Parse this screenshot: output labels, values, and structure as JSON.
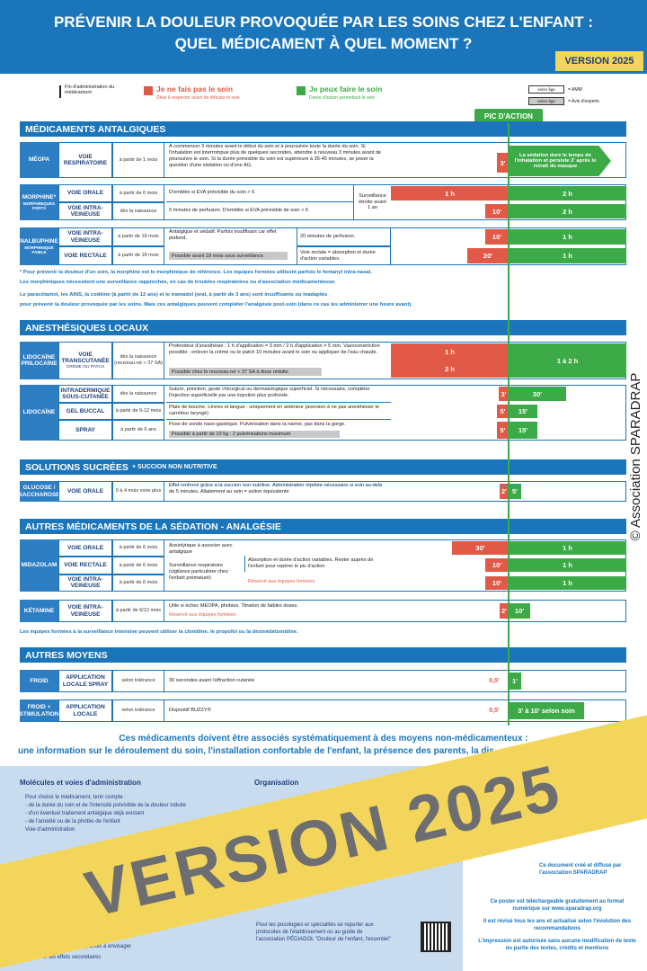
{
  "header": {
    "line1": "PRÉVENIR LA DOULEUR PROVOQUÉE PAR LES SOINS CHEZ L'ENFANT :",
    "line2": "QUEL MÉDICAMENT À QUEL MOMENT ?",
    "version": "VERSION 2025"
  },
  "legend": {
    "end": "Fin d'administration du médicament",
    "no": "Je ne fais pas le soin",
    "no_sub": "Délai à respecter avant de débuter le soin",
    "yes": "Je peux faire le soin",
    "yes_sub": "Durée d'action permettant le soin",
    "tag": "selon âge",
    "amm": "= AMM",
    "experts": "= Avis d'experts"
  },
  "peak": "PIC D'ACTION",
  "analgesics": {
    "title": "MÉDICAMENTS ANTALGIQUES",
    "meopa": {
      "name": "MÉOPA",
      "route": "VOIE RESPIRATOIRE",
      "age": "à partir de 1 mois",
      "desc": "À commencer 3 minutes avant le début du soin et à poursuivre toute la durée du soin. Si l'inhalation est interrompue plus de quelques secondes, attendre à nouveau 3 minutes avant de poursuivre le soin. Si la durée prévisible du soin est supérieure à 35-45 minutes, se poser la question d'une sédation ou d'une AG.",
      "delay": "3'",
      "duration": "La sédation dure le temps de l'inhalation et persiste 2' après le retrait du masque"
    },
    "morphine": {
      "name": "MORPHINE*",
      "sub": "MORPHINIQUES FORTS",
      "watch": "Surveillance étroite avant 1 an",
      "rows": [
        {
          "route": "VOIE ORALE",
          "age": "à partir de 6 mois",
          "desc": "D'emblée si EVA prévisible du soin > 6",
          "delay": "1 h",
          "duration": "2 h"
        },
        {
          "route": "VOIE INTRA-VEINEUSE",
          "age": "dès la naissance",
          "desc": "5 minutes de perfusion. D'emblée si EVA prévisible de soin > 6",
          "delay": "10'",
          "duration": "2 h"
        }
      ]
    },
    "nalbuphine": {
      "name": "NALBUPHINE",
      "sub": "MORPHINIQUE FAIBLE",
      "desc": "Antalgique et sédatif. Parfois insuffisant car effet plafond.",
      "restriction": "Possible avant 18 mois sous surveillance.",
      "rows": [
        {
          "route": "VOIE INTRA-VEINEUSE",
          "age": "à partir de 18 mois",
          "note": "20 minutes de perfusion.",
          "delay": "10'",
          "duration": "1 h"
        },
        {
          "route": "VOIE RECTALE",
          "age": "à partir de 18 mois",
          "note": "Voie rectale = absorption et durée d'action variables.",
          "delay": "20'",
          "duration": "1 h"
        }
      ]
    },
    "notes": [
      "* Pour prévenir la douleur d'un soin, la morphine est le morphinique de référence. Les équipes formées utilisent parfois le fentanyl intra-nasal.",
      "Les morphiniques nécessitent une surveillance rapprochée, en cas de troubles respiratoires ou d'association médicamenteuse.",
      "Le paracétamol, les AINS, la codéine (à partir de 12 ans) et le tramadol (oral, à partir de 3 ans) sont insuffisants ou inadaptés",
      "pour prévenir la douleur provoquée par les soins. Mais ces antalgiques peuvent compléter l'analgésie post-soin (dans ce cas les administrer une heure avant)."
    ]
  },
  "local": {
    "title": "ANESTHÉSIQUES LOCAUX",
    "emla": {
      "name": "LIDOCAÏNE PRILOCAÏNE",
      "route": "VOIE TRANSCUTANÉE",
      "form": "CRÈME OU PATCH",
      "age": "dès la naissance (nouveau-né > 37 SA)",
      "desc": "Profondeur d'anesthésie : 1 h d'application = 3 mm / 2 h d'application = 5 mm. Vasoconstriction possible : enlever la crème ou le patch 10 minutes avant le soin ou appliquer de l'eau chaude.",
      "restriction": "Possible chez le nouveau-né < 37 SA à dose réduite",
      "delay1": "1 h",
      "delay2": "2 h",
      "duration": "1 à 2 h"
    },
    "lidocaine": {
      "name": "LIDOCAÏNE",
      "rows": [
        {
          "route": "INTRADERMIQUE SOUS-CUTANÉE",
          "age": "dès la naissance",
          "desc": "Suture, ponction, geste chirurgical ou dermatologique superficiel. Si nécessaire, compléter l'injection superficielle par une injection plus profonde.",
          "delay": "3'",
          "duration": "30'"
        },
        {
          "route": "GEL BUCCAL",
          "age": "à partir de 9-12 mois",
          "desc": "Plaie de bouche. Lèvres et langue : uniquement en antérieur (aversion à ne pas anesthésier le carrefour laryngé)",
          "delay": "5'",
          "duration": "15'"
        },
        {
          "route": "SPRAY",
          "age": "à partir de 6 ans",
          "desc": "Pose de sonde naso-gastrique. Pulvérisation dans la narine, pas dans la gorge.",
          "restriction": "Possible à partir de 10 kg : 2 pulvérisations maximum",
          "delay": "5'",
          "duration": "15'"
        }
      ]
    }
  },
  "sugar": {
    "title": "SOLUTIONS SUCRÉES",
    "subtitle": "+ SUCCION NON NUTRITIVE",
    "glucose": {
      "name": "GLUCOSE / SACCHAROSE",
      "route": "VOIE ORALE",
      "age": "0 à 4 mois voire plus",
      "desc": "Effet renforcé grâce à la succion non nutritive. Administration répétée nécessaire si soin au-delà de 5 minutes. Allaitement au sein = action équivalente",
      "delay": "2'",
      "duration": "5'"
    }
  },
  "sedation": {
    "title": "AUTRES MÉDICAMENTS DE LA SÉDATION - ANALGÉSIE",
    "midazolam": {
      "name": "MIDAZOLAM",
      "desc1": "Anxiolytique à associer avec antalgique",
      "desc2": "Surveillance respiratoire (vigilance particulière chez l'enfant prématuré)",
      "desc3": "Absorption et durée d'action variables. Rester auprès de l'enfant pour repérer le pic d'action",
      "restriction": "Réservé aux équipes formées",
      "rows": [
        {
          "route": "VOIE ORALE",
          "age": "à partir de 6 mois",
          "delay": "30'",
          "duration": "1 h"
        },
        {
          "route": "VOIE RECTALE",
          "age": "à partir de 6 mois",
          "delay": "10'",
          "duration": "1 h"
        },
        {
          "route": "VOIE INTRA-VEINEUSE",
          "age": "à partir de 6 mois",
          "delay": "10'",
          "duration": "1 h"
        }
      ]
    },
    "ketamine": {
      "name": "KÉTAMINE",
      "route": "VOIE INTRA-VEINEUSE",
      "age": "à partir de 6/12 mois",
      "desc": "Utile si échec MÉOPA, phobies. Titration de faibles doses.",
      "restriction": "Réservé aux équipes formées",
      "delay": "2'",
      "duration": "10'"
    },
    "note": "Les équipes formées à la surveillance intensive peuvent utiliser la clonidine, le propofol ou la dexmédétomidine."
  },
  "other": {
    "title": "AUTRES MOYENS",
    "cold": {
      "name": "FROID",
      "route": "APPLICATION LOCALE SPRAY",
      "age": "selon tolérance",
      "desc": "30 secondes avant l'effraction cutanée",
      "delay": "0,5'",
      "duration": "1'"
    },
    "buzzy": {
      "name": "FROID + STIMULATION",
      "route": "APPLICATION LOCALE",
      "age": "selon tolérance",
      "desc": "Dispositif BUZZY®",
      "delay": "0,5'",
      "duration": "3' à 10' selon soin"
    }
  },
  "footer": {
    "line1": "Ces médicaments doivent être associés systématiquement à des moyens non-médicamenteux :",
    "line2": "une information sur le déroulement du soin, l'installation confortable de l'enfant, la présence des parents, la dis",
    "col1_title": "Molécules et voies d'administration",
    "col1": [
      "Pour choisir le médicament, tenir compte :",
      "- de la durée du soin et de l'intensité prévisible de la douleur induite",
      "- d'un éventuel traitement antalgique déjà existant",
      "- de l'anxiété ou de la phobie de l'enfant",
      "Voie d'administration"
    ],
    "col1_end": [
      "pression. Un traitement est parfois à envisager",
      "et surveiller les effets secondaires"
    ],
    "col2_title": "Organisation",
    "dosage": "Pour les posologies et spécialités se reporter aux protocoles de l'établissement ou au guide de l'association PÉDIADOL \"Douleur de l'enfant, l'essentiel\"",
    "credit": "Ce document créé et diffusé par l'association SPARADRAP",
    "download": "Ce poster est téléchargeable gratuitement au format numérique sur www.sparadrap.org",
    "revision": "Il est révisé tous les ans et actualisé selon l'évolution des recommandations",
    "print": "L'impression est autorisée sans aucune modification de texte ou partie des textes, crédits et mentions"
  },
  "banner": "VERSION 2025",
  "copyright": "© Association SPARADRAP"
}
